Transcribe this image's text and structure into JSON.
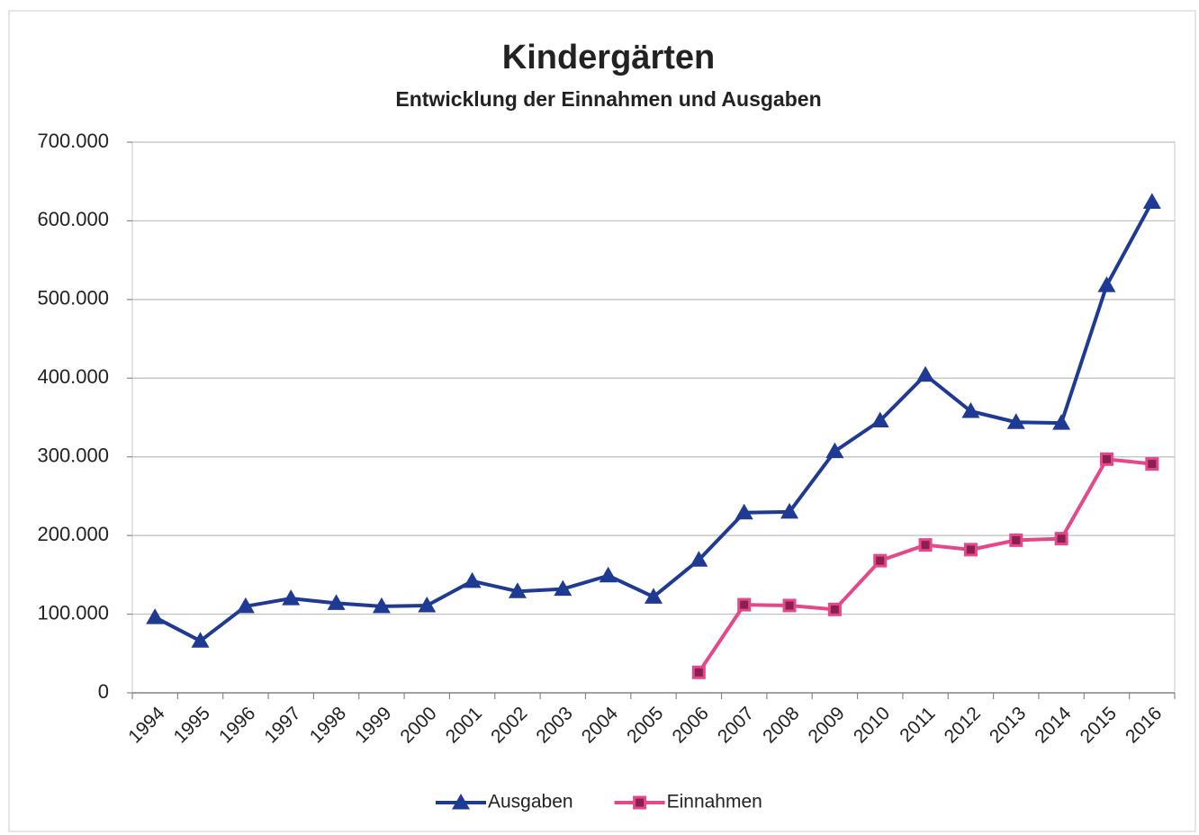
{
  "chart_data": {
    "type": "line",
    "title": "Kindergärten",
    "subtitle": "Entwicklung der Einnahmen und Ausgaben",
    "categories": [
      "1994",
      "1995",
      "1996",
      "1997",
      "1998",
      "1999",
      "2000",
      "2001",
      "2002",
      "2003",
      "2004",
      "2005",
      "2006",
      "2007",
      "2008",
      "2009",
      "2010",
      "2011",
      "2012",
      "2013",
      "2014",
      "2015",
      "2016"
    ],
    "series": [
      {
        "name": "Ausgaben",
        "color": "#1f3a93",
        "marker": "triangle",
        "values": [
          96000,
          66000,
          110000,
          120000,
          114000,
          110000,
          111000,
          142000,
          129000,
          132000,
          149000,
          122000,
          169000,
          229000,
          230000,
          307000,
          346000,
          404000,
          358000,
          344000,
          343000,
          518000,
          624000
        ]
      },
      {
        "name": "Einnahmen",
        "color": "#e5488a",
        "marker": "square",
        "values": [
          null,
          null,
          null,
          null,
          null,
          null,
          null,
          null,
          null,
          null,
          null,
          null,
          26000,
          112000,
          111000,
          106000,
          168000,
          188000,
          182000,
          194000,
          196000,
          297000,
          291000
        ]
      }
    ],
    "ylim": [
      0,
      700000
    ],
    "yticks": [
      0,
      {
        "value": 100000,
        "label": "100.000"
      },
      {
        "value": 200000,
        "label": "200.000"
      },
      {
        "value": 300000,
        "label": "300.000"
      },
      {
        "value": 400000,
        "label": "400.000"
      },
      {
        "value": 500000,
        "label": "500.000"
      },
      {
        "value": 600000,
        "label": "600.000"
      },
      {
        "value": 700000,
        "label": "700.000"
      }
    ],
    "grid": true,
    "legend": "bottom"
  }
}
